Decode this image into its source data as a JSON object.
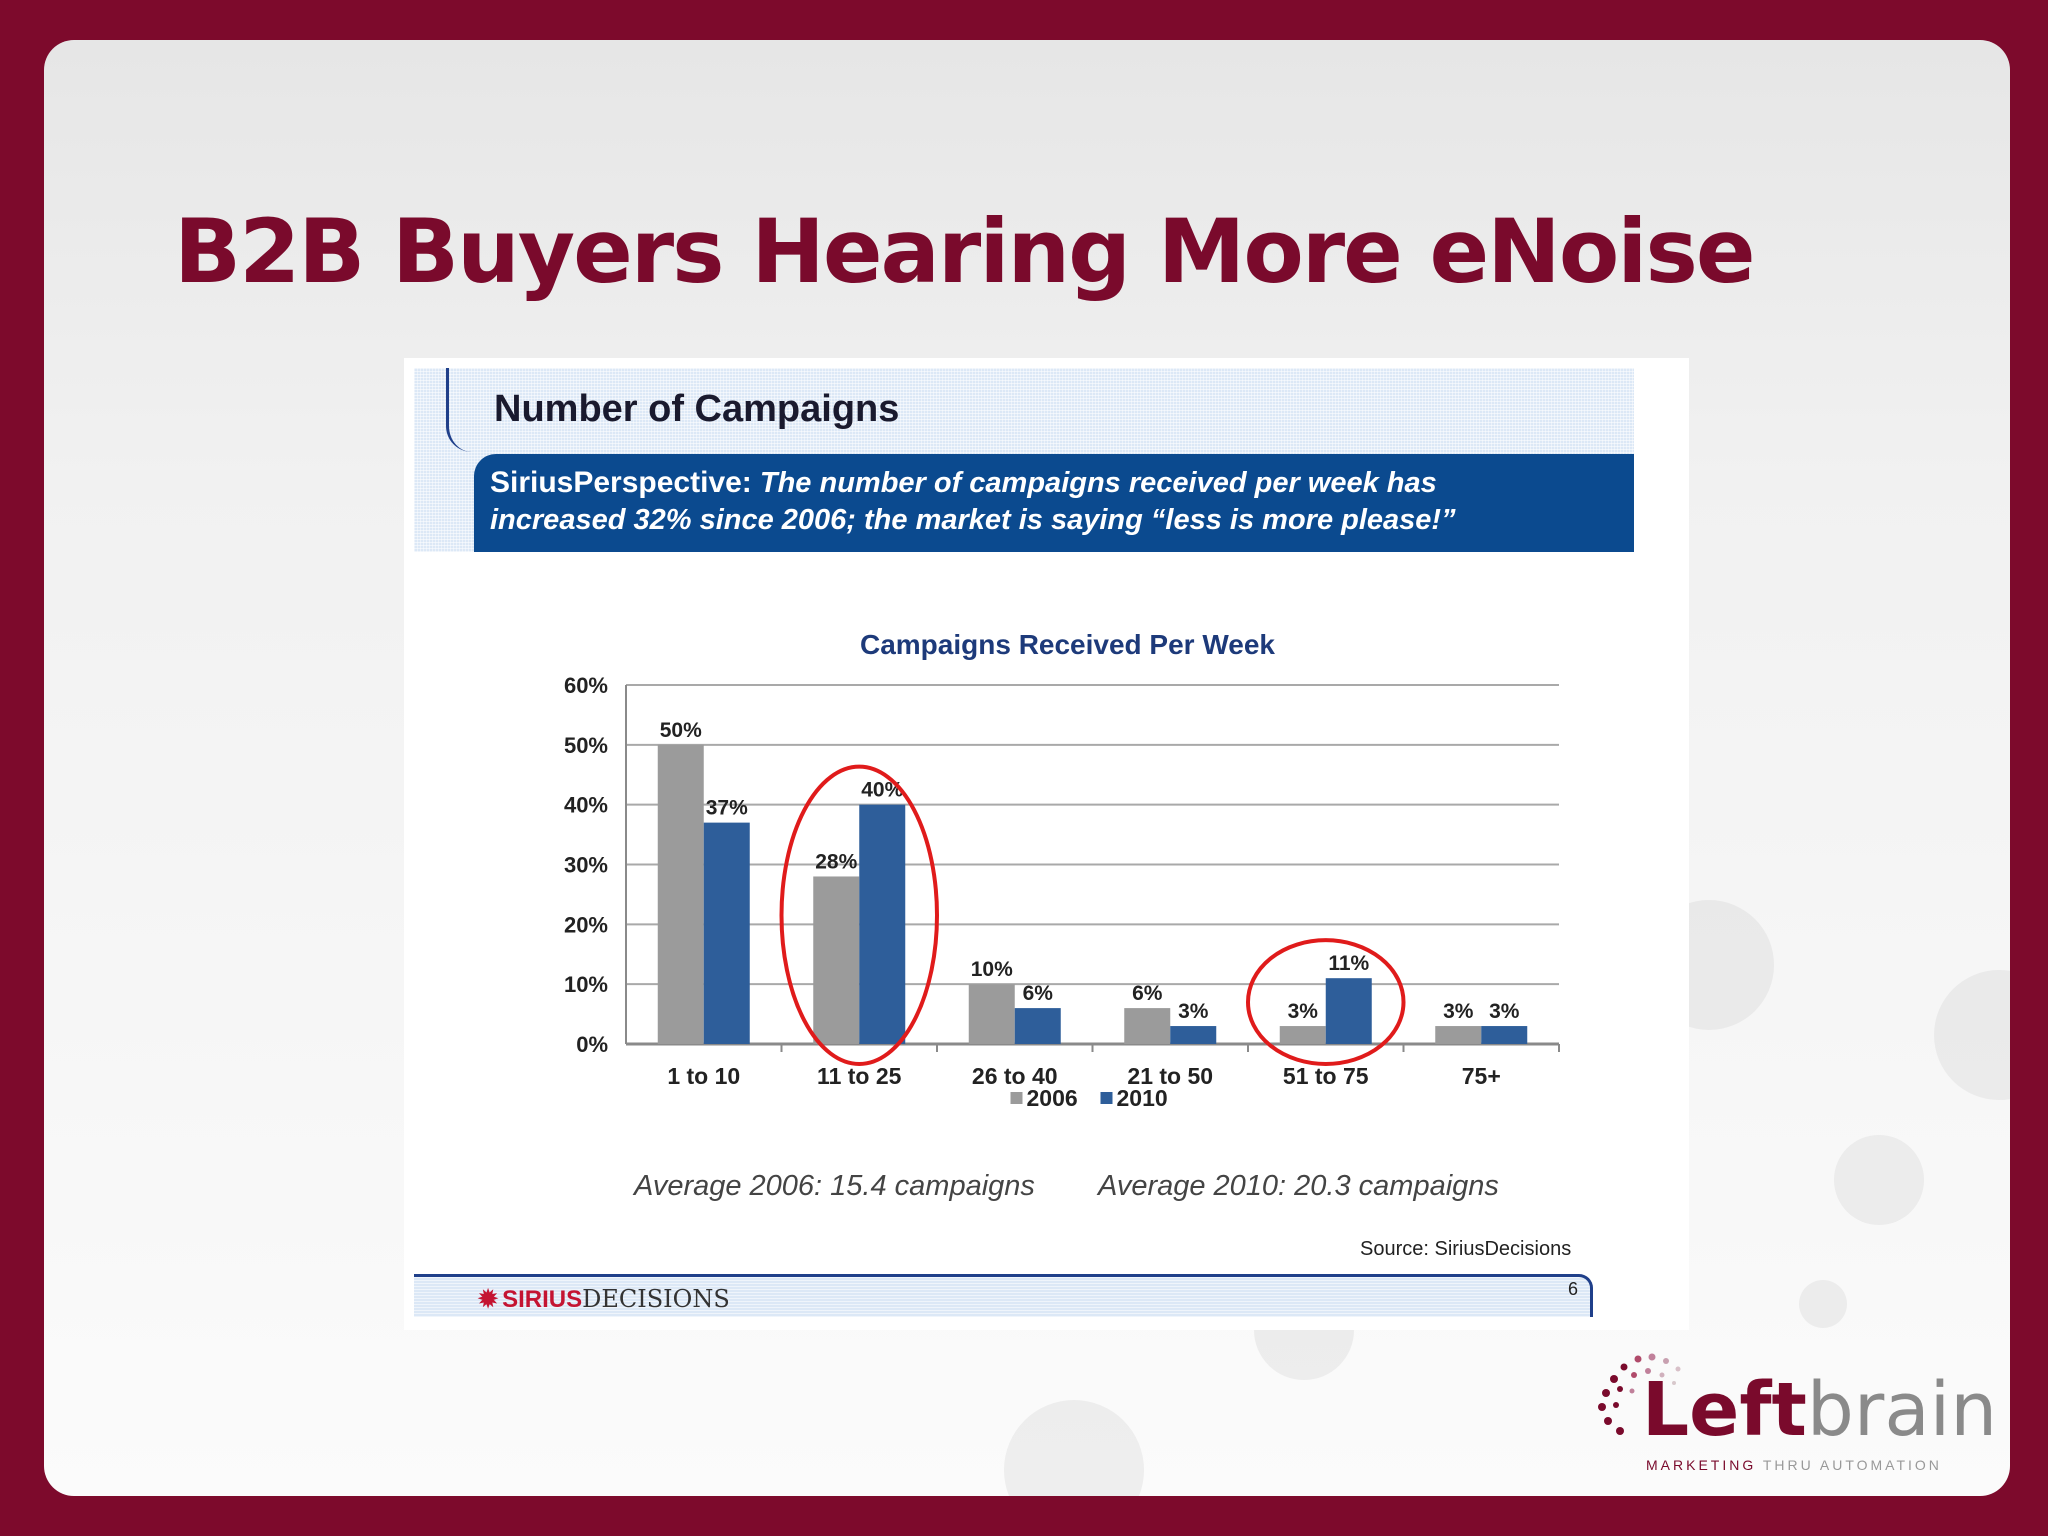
{
  "slide": {
    "title": "B2B Buyers Hearing More eNoise"
  },
  "header": {
    "title": "Number of Campaigns",
    "perspective_label": "SiriusPerspective:",
    "perspective_line1": "The number of campaigns received per week has",
    "perspective_line2": "increased 32% since 2006; the market is saying “less is more please!”"
  },
  "chart_data": {
    "type": "bar",
    "title": "Campaigns Received Per Week",
    "categories": [
      "1 to 10",
      "11 to 25",
      "26 to 40",
      "21 to 50",
      "51 to 75",
      "75+"
    ],
    "series": [
      {
        "name": "2006",
        "values": [
          50,
          28,
          10,
          6,
          3,
          3
        ],
        "labels": [
          "50%",
          "28%",
          "10%",
          "6%",
          "3%",
          "3%"
        ],
        "color": "#9b9b9b"
      },
      {
        "name": "2010",
        "values": [
          37,
          40,
          6,
          3,
          11,
          3
        ],
        "labels": [
          "37%",
          "40%",
          "6%",
          "3%",
          "11%",
          "3%"
        ],
        "color": "#2e5e9a"
      }
    ],
    "ylim": [
      0,
      60
    ],
    "yticks": [
      "0%",
      "10%",
      "20%",
      "30%",
      "40%",
      "50%",
      "60%"
    ],
    "grid": true,
    "legend": "bottom",
    "highlighted_categories": [
      "11 to 25",
      "51 to 75"
    ],
    "highlight_color": "#e01b1b"
  },
  "averages": {
    "avg2006": "Average 2006: 15.4 campaigns",
    "avg2010": "Average 2010: 20.3 campaigns"
  },
  "source": "Source:  SiriusDecisions",
  "footer": {
    "logo_sirius": "SIRIUS",
    "logo_decisions": "DECISIONS",
    "page_number": "6"
  },
  "brand": {
    "word_left": "Left",
    "word_right": "brain",
    "tag_marketing": "MARKETING",
    "tag_rest": "THRU AUTOMATION"
  },
  "colors": {
    "frame": "#7d0a2c",
    "title": "#7a0a2c",
    "banner": "#0b4a8f"
  }
}
